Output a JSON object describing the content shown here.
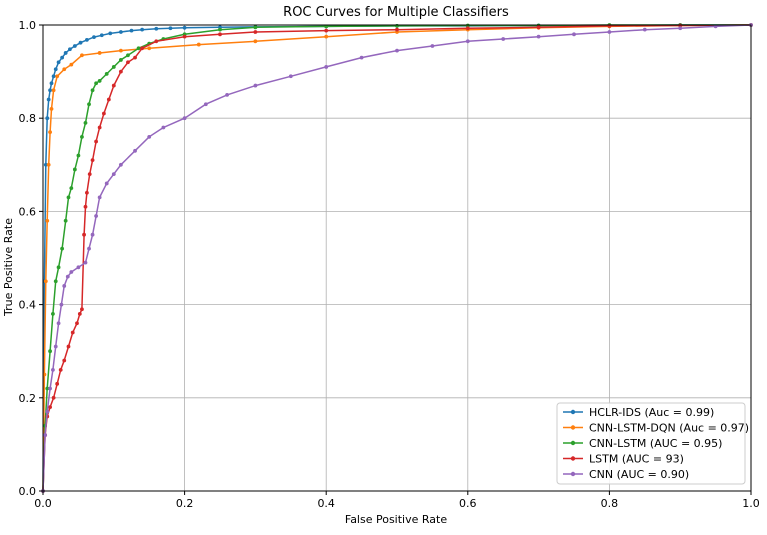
{
  "chart_data": {
    "type": "line",
    "title": "ROC Curves for Multiple Classifiers",
    "xlabel": "False Positive Rate",
    "ylabel": "True Positive Rate",
    "xlim": [
      0.0,
      1.0
    ],
    "ylim": [
      0.0,
      1.0
    ],
    "grid": true,
    "legend_position": "lower-right",
    "x_ticks": [
      "0.0",
      "0.2",
      "0.4",
      "0.6",
      "0.8",
      "1.0"
    ],
    "y_ticks": [
      "0.0",
      "0.2",
      "0.4",
      "0.6",
      "0.8",
      "1.0"
    ],
    "series": [
      {
        "name": "HCLR-IDS (Auc = 0.99)",
        "color": "#1f77b4",
        "x": [
          0.0,
          0.002,
          0.004,
          0.006,
          0.008,
          0.01,
          0.012,
          0.015,
          0.018,
          0.022,
          0.027,
          0.032,
          0.038,
          0.045,
          0.053,
          0.062,
          0.072,
          0.083,
          0.095,
          0.11,
          0.125,
          0.14,
          0.16,
          0.18,
          0.2,
          0.25,
          0.3,
          0.4,
          0.5,
          0.6,
          0.7,
          0.8,
          0.9,
          1.0
        ],
        "y": [
          0.0,
          0.45,
          0.7,
          0.8,
          0.84,
          0.86,
          0.875,
          0.89,
          0.905,
          0.92,
          0.93,
          0.94,
          0.948,
          0.955,
          0.962,
          0.968,
          0.974,
          0.978,
          0.982,
          0.985,
          0.988,
          0.99,
          0.992,
          0.993,
          0.994,
          0.995,
          0.996,
          0.997,
          0.998,
          0.998,
          0.999,
          0.999,
          1.0,
          1.0
        ]
      },
      {
        "name": "CNN-LSTM-DQN (Auc = 0.97)",
        "color": "#ff7f0e",
        "x": [
          0.0,
          0.002,
          0.004,
          0.006,
          0.008,
          0.01,
          0.012,
          0.015,
          0.02,
          0.03,
          0.04,
          0.055,
          0.08,
          0.11,
          0.15,
          0.22,
          0.3,
          0.4,
          0.5,
          0.6,
          0.7,
          0.8,
          0.9,
          1.0
        ],
        "y": [
          0.0,
          0.25,
          0.45,
          0.58,
          0.7,
          0.77,
          0.82,
          0.86,
          0.89,
          0.905,
          0.915,
          0.935,
          0.94,
          0.945,
          0.95,
          0.958,
          0.965,
          0.975,
          0.985,
          0.99,
          0.994,
          0.997,
          0.999,
          1.0
        ]
      },
      {
        "name": "CNN-LSTM (AUC = 0.95)",
        "color": "#2ca02c",
        "x": [
          0.0,
          0.003,
          0.006,
          0.01,
          0.014,
          0.018,
          0.022,
          0.027,
          0.032,
          0.036,
          0.04,
          0.045,
          0.05,
          0.055,
          0.06,
          0.065,
          0.07,
          0.075,
          0.08,
          0.09,
          0.1,
          0.11,
          0.12,
          0.135,
          0.15,
          0.17,
          0.2,
          0.25,
          0.3,
          0.4,
          0.5,
          0.6,
          0.7,
          0.8,
          0.9,
          1.0
        ],
        "y": [
          0.0,
          0.14,
          0.22,
          0.3,
          0.38,
          0.45,
          0.48,
          0.52,
          0.58,
          0.63,
          0.65,
          0.69,
          0.72,
          0.76,
          0.79,
          0.83,
          0.86,
          0.875,
          0.88,
          0.895,
          0.91,
          0.925,
          0.935,
          0.95,
          0.96,
          0.97,
          0.98,
          0.99,
          0.995,
          0.997,
          0.998,
          0.999,
          0.999,
          1.0,
          1.0,
          1.0
        ]
      },
      {
        "name": "LSTM (AUC = 93)",
        "color": "#d62728",
        "x": [
          0.0,
          0.003,
          0.006,
          0.01,
          0.015,
          0.02,
          0.025,
          0.03,
          0.036,
          0.042,
          0.048,
          0.052,
          0.055,
          0.058,
          0.06,
          0.062,
          0.066,
          0.07,
          0.075,
          0.08,
          0.086,
          0.093,
          0.1,
          0.11,
          0.12,
          0.13,
          0.14,
          0.16,
          0.2,
          0.25,
          0.3,
          0.4,
          0.5,
          0.6,
          0.7,
          0.8,
          0.9,
          1.0
        ],
        "y": [
          0.0,
          0.12,
          0.16,
          0.18,
          0.2,
          0.23,
          0.26,
          0.28,
          0.31,
          0.34,
          0.36,
          0.38,
          0.39,
          0.55,
          0.61,
          0.64,
          0.68,
          0.71,
          0.75,
          0.78,
          0.81,
          0.84,
          0.87,
          0.9,
          0.92,
          0.93,
          0.95,
          0.965,
          0.975,
          0.98,
          0.985,
          0.988,
          0.99,
          0.993,
          0.995,
          0.998,
          0.999,
          1.0
        ]
      },
      {
        "name": "CNN (AUC = 0.90)",
        "color": "#9467bd",
        "x": [
          0.0,
          0.003,
          0.006,
          0.01,
          0.014,
          0.018,
          0.022,
          0.026,
          0.03,
          0.035,
          0.04,
          0.05,
          0.06,
          0.065,
          0.07,
          0.075,
          0.08,
          0.09,
          0.1,
          0.11,
          0.13,
          0.15,
          0.17,
          0.2,
          0.23,
          0.26,
          0.3,
          0.35,
          0.4,
          0.45,
          0.5,
          0.55,
          0.6,
          0.65,
          0.7,
          0.75,
          0.8,
          0.85,
          0.9,
          0.95,
          1.0
        ],
        "y": [
          0.0,
          0.12,
          0.17,
          0.22,
          0.26,
          0.31,
          0.36,
          0.4,
          0.44,
          0.46,
          0.47,
          0.48,
          0.49,
          0.52,
          0.55,
          0.59,
          0.63,
          0.66,
          0.68,
          0.7,
          0.73,
          0.76,
          0.78,
          0.8,
          0.83,
          0.85,
          0.87,
          0.89,
          0.91,
          0.93,
          0.945,
          0.955,
          0.965,
          0.97,
          0.975,
          0.98,
          0.985,
          0.99,
          0.993,
          0.997,
          1.0
        ]
      }
    ]
  }
}
